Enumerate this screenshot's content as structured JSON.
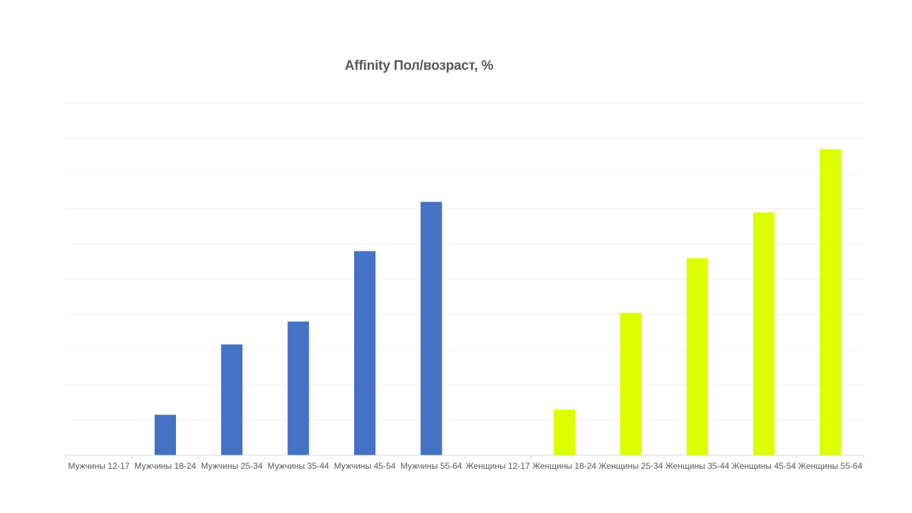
{
  "chart_data": {
    "type": "bar",
    "title": "Affinity Пол/возраст, %",
    "xlabel": "",
    "ylabel": "",
    "categories": [
      "Мужчины 12-17",
      "Мужчины 18-24",
      "Мужчины 25-34",
      "Мужчины 35-44",
      "Мужчины 45-54",
      "Мужчины 55-64",
      "Женщины 12-17",
      "Женщины 18-24",
      "Женщины 25-34",
      "Женщины 35-44",
      "Женщины 45-54",
      "Женщины 55-64"
    ],
    "values": [
      0,
      11.5,
      31.5,
      38,
      58,
      72,
      0,
      13,
      40.5,
      56,
      69,
      87
    ],
    "ylim": [
      0,
      100
    ],
    "grid": true,
    "y_tick_labels_visible": false,
    "bar_colors": [
      "#4472C4",
      "#4472C4",
      "#4472C4",
      "#4472C4",
      "#4472C4",
      "#4472C4",
      "#DDFF00",
      "#DDFF00",
      "#DDFF00",
      "#DDFF00",
      "#DDFF00",
      "#DDFF00"
    ],
    "gridline_color": "#EDEDED",
    "axis_color": "#D9D9D9",
    "label_color": "#595959"
  }
}
